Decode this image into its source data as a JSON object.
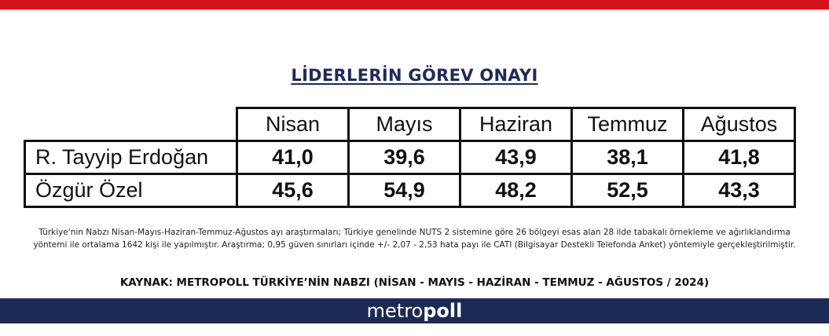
{
  "title": "LİDERLERİN GÖREV ONAYI",
  "chart_data": {
    "type": "table",
    "title": "LİDERLERİN GÖREV ONAYI",
    "columns": [
      "Nisan",
      "Mayıs",
      "Haziran",
      "Temmuz",
      "Ağustos"
    ],
    "rows": [
      {
        "name": "R. Tayyip Erdoğan",
        "display": [
          "41,0",
          "39,6",
          "43,9",
          "38,1",
          "41,8"
        ],
        "values": [
          41.0,
          39.6,
          43.9,
          38.1,
          41.8
        ]
      },
      {
        "name": "Özgür Özel",
        "display": [
          "45,6",
          "54,9",
          "48,2",
          "52,5",
          "43,3"
        ],
        "values": [
          45.6,
          54.9,
          48.2,
          52.5,
          43.3
        ]
      }
    ]
  },
  "note": "Türkiye'nin Nabzı Nisan-Mayıs-Haziran-Temmuz-Ağustos ayı araştırmaları; Türkiye genelinde NUTS 2 sistemine göre 26 bölgeyi esas alan 28 ilde tabakalı örnekleme ve ağırlıklandırma yöntemi ile ortalama 1642 kişi ile yapılmıştır. Araştırma; 0,95 güven sınırları içinde +/- 2,07 - 2,53 hata payı ile CATI (Bilgisayar Destekli Telefonda Anket) yöntemiyle gerçekleştirilmiştir.",
  "source": "KAYNAK: METROPOLL TÜRKİYE’NİN NABZI (NİSAN - MAYIS - HAZİRAN - TEMMUZ - AĞUSTOS / 2024)",
  "logo": {
    "light": "metro",
    "bold": "poll"
  },
  "colors": {
    "accent_red": "#d2111a",
    "brand_navy": "#1b2a55",
    "title_navy": "#1e2a5a"
  }
}
